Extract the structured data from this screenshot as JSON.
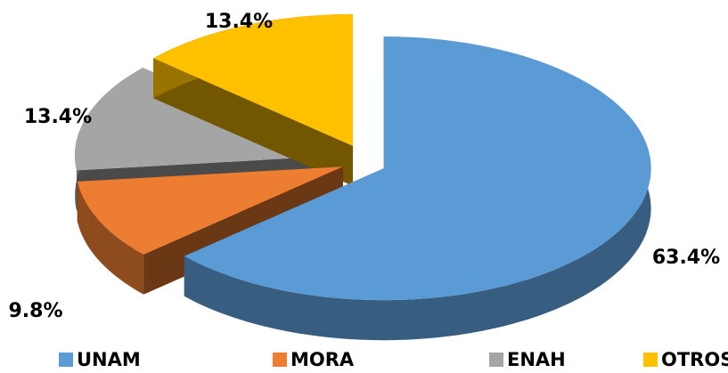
{
  "chart_data": {
    "type": "pie",
    "categories": [
      "UNAM",
      "MORA",
      "ENAH",
      "OTROS"
    ],
    "values": [
      63.4,
      9.8,
      13.4,
      13.4
    ],
    "value_labels": [
      "63.4%",
      "9.8%",
      "13.4%",
      "13.4%"
    ],
    "colors": [
      "#5b9bd5",
      "#ed7d31",
      "#a5a5a5",
      "#ffc000"
    ],
    "legend": "bottom"
  }
}
